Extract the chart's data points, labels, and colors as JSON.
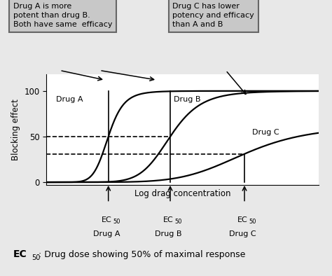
{
  "background_color": "#e8e8e8",
  "plot_bg": "#ffffff",
  "ylabel": "Blocking effect",
  "xlabel": "Log drag concentration",
  "yticks": [
    0,
    50,
    100
  ],
  "drug_a": {
    "ec50": 2.5,
    "emax": 100,
    "hill": 8
  },
  "drug_b": {
    "ec50": 5.0,
    "emax": 100,
    "hill": 8
  },
  "drug_c": {
    "ec50": 8.0,
    "emax": 62,
    "hill": 6
  },
  "x_range": [
    0,
    11
  ],
  "y_range": [
    -3,
    118
  ],
  "dashed_line_50": 50,
  "dashed_line_30": 31,
  "box1_text": "Drug A is more\npotent than drug B.\nBoth have same  efficacy",
  "box2_text": "Drug C has lower\npotency and efficacy\nthan A and B",
  "label_a": "Drug A",
  "label_b": "Drug B",
  "label_c": "Drug C",
  "footer_rest": " : Drug dose showing 50% of maximal response",
  "line_color": "#000000",
  "dashed_color": "#000000",
  "box_face": "#c8c8c8",
  "box_edge": "#666666"
}
